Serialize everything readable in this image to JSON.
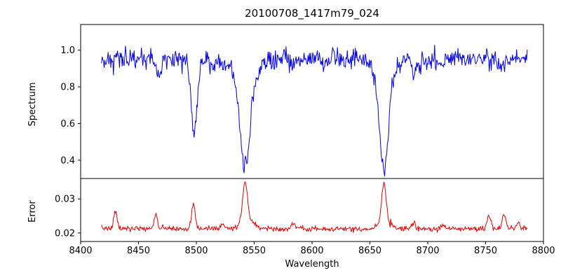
{
  "figure": {
    "title": "20100708_1417m79_024",
    "background": "#ffffff"
  },
  "chart_data": {
    "type": "line",
    "title": "20100708_1417m79_024",
    "xlabel": "Wavelength",
    "xlim": [
      8400,
      8800
    ],
    "x_range_data": [
      8418,
      8786
    ],
    "grid": false,
    "legend": "none",
    "x_ticks": {
      "values": [
        8400,
        8450,
        8500,
        8550,
        8600,
        8650,
        8700,
        8750,
        8800
      ],
      "labels": [
        "8400",
        "8450",
        "8500",
        "8550",
        "8600",
        "8650",
        "8700",
        "8750",
        "8800"
      ]
    },
    "panels": [
      {
        "name": "spectrum",
        "ylabel": "Spectrum",
        "ylim": [
          0.3,
          1.14
        ],
        "y_ticks": {
          "values": [
            0.4,
            0.6,
            0.8,
            1.0
          ],
          "labels": [
            "0.4",
            "0.6",
            "0.8",
            "1.0"
          ]
        },
        "line_color": "#0000ee",
        "line_width": 1,
        "baseline": 0.955,
        "noise_sigma": 0.028,
        "seed": 42,
        "lines": [
          {
            "center": 8498.0,
            "amplitude": -0.43,
            "width": 2.6
          },
          {
            "center": 8542.1,
            "amplitude": -0.5,
            "width": 4.2
          },
          {
            "center": 8542.1,
            "amplitude": -0.1,
            "width": 11
          },
          {
            "center": 8662.1,
            "amplitude": -0.53,
            "width": 3.8
          },
          {
            "center": 8662.1,
            "amplitude": -0.08,
            "width": 10
          },
          {
            "center": 8468,
            "amplitude": -0.09,
            "width": 1.8
          },
          {
            "center": 8514,
            "amplitude": -0.07,
            "width": 1.8
          },
          {
            "center": 8583,
            "amplitude": -0.05,
            "width": 1.8
          },
          {
            "center": 8611,
            "amplitude": -0.04,
            "width": 1.8
          },
          {
            "center": 8688,
            "amplitude": -0.06,
            "width": 1.8
          },
          {
            "center": 8713,
            "amplitude": -0.04,
            "width": 1.8
          },
          {
            "center": 8764,
            "amplitude": -0.05,
            "width": 1.8
          }
        ]
      },
      {
        "name": "error",
        "ylabel": "Error",
        "ylim": [
          0.0175,
          0.036
        ],
        "y_ticks": {
          "values": [
            0.02,
            0.03
          ],
          "labels": [
            "0.02",
            "0.03"
          ]
        },
        "line_color": "#ee0000",
        "line_width": 1,
        "baseline": 0.0213,
        "noise_sigma": 0.0004,
        "seed": 7,
        "lines": [
          {
            "center": 8430,
            "amplitude": 0.005,
            "width": 1.4
          },
          {
            "center": 8465,
            "amplitude": 0.0042,
            "width": 1.4
          },
          {
            "center": 8497.5,
            "amplitude": 0.0068,
            "width": 1.6
          },
          {
            "center": 8523,
            "amplitude": 0.0014,
            "width": 1.6
          },
          {
            "center": 8542,
            "amplitude": 0.0112,
            "width": 2.0
          },
          {
            "center": 8544,
            "amplitude": 0.003,
            "width": 5.0
          },
          {
            "center": 8584,
            "amplitude": 0.0012,
            "width": 1.6
          },
          {
            "center": 8662,
            "amplitude": 0.0105,
            "width": 1.8
          },
          {
            "center": 8663,
            "amplitude": 0.0028,
            "width": 4.5
          },
          {
            "center": 8688,
            "amplitude": 0.0018,
            "width": 1.6
          },
          {
            "center": 8713,
            "amplitude": 0.0012,
            "width": 1.6
          },
          {
            "center": 8753,
            "amplitude": 0.004,
            "width": 1.5
          },
          {
            "center": 8766,
            "amplitude": 0.0042,
            "width": 1.5
          },
          {
            "center": 8778,
            "amplitude": 0.0018,
            "width": 1.4
          }
        ]
      }
    ]
  }
}
